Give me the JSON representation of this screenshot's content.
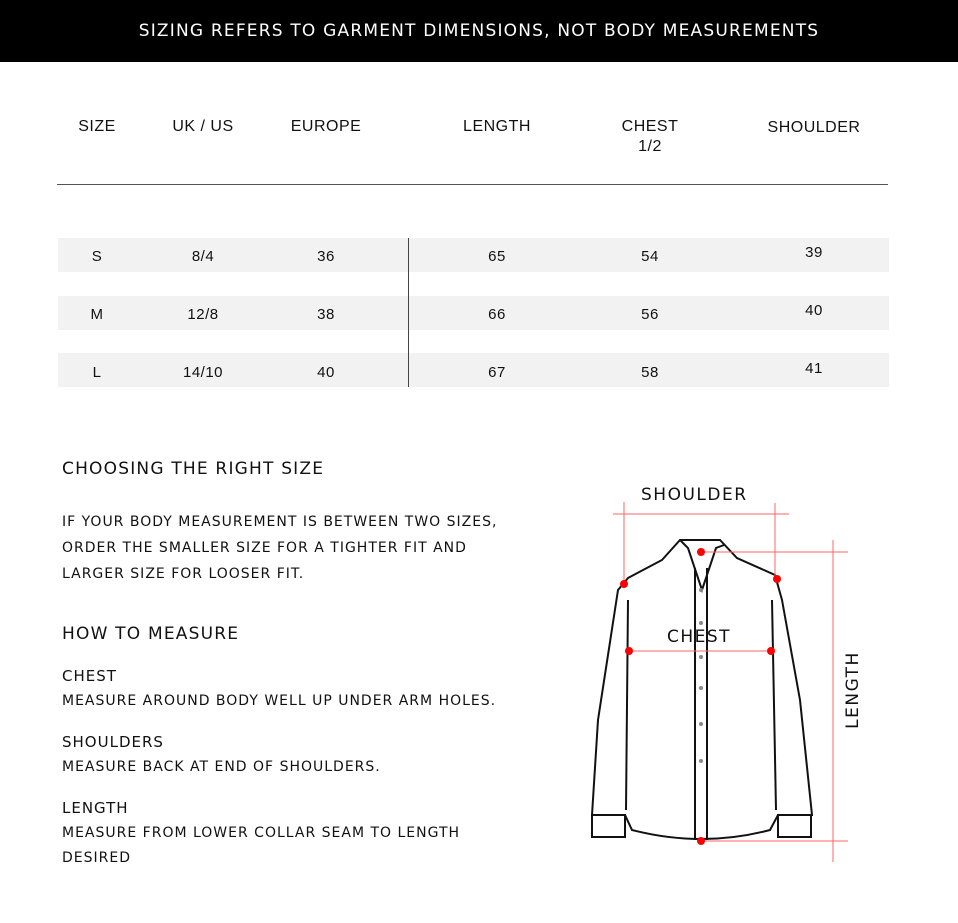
{
  "banner": "SIZING REFERS TO GARMENT DIMENSIONS, NOT BODY MEASUREMENTS",
  "table": {
    "headers": [
      "SIZE",
      "UK / US",
      "EUROPE",
      "LENGTH",
      "CHEST",
      "SHOULDER"
    ],
    "chest_sub": "1/2",
    "rows": [
      [
        "S",
        "8/4",
        "36",
        "65",
        "54",
        "39"
      ],
      [
        "M",
        "12/8",
        "38",
        "66",
        "56",
        "40"
      ],
      [
        "L",
        "14/10",
        "40",
        "67",
        "58",
        "41"
      ]
    ]
  },
  "choosing": {
    "title": "CHOOSING THE RIGHT SIZE",
    "lines": [
      "IF YOUR BODY MEASUREMENT IS BETWEEN TWO SIZES,",
      "ORDER THE SMALLER SIZE FOR A TIGHTER FIT AND",
      "LARGER SIZE FOR LOOSER FIT."
    ]
  },
  "measure": {
    "title": "HOW TO MEASURE",
    "items": [
      {
        "label": "CHEST",
        "text": "MEASURE AROUND BODY WELL UP UNDER ARM HOLES."
      },
      {
        "label": "SHOULDERS",
        "text": "MEASURE BACK AT END OF SHOULDERS."
      },
      {
        "label": "LENGTH",
        "text": "MEASURE FROM LOWER COLLAR SEAM TO LENGTH",
        "text2": "DESIRED"
      }
    ]
  },
  "diagram": {
    "shoulder": "SHOULDER",
    "chest": "CHEST",
    "length": "LENGTH",
    "accent": "#ff0000"
  }
}
